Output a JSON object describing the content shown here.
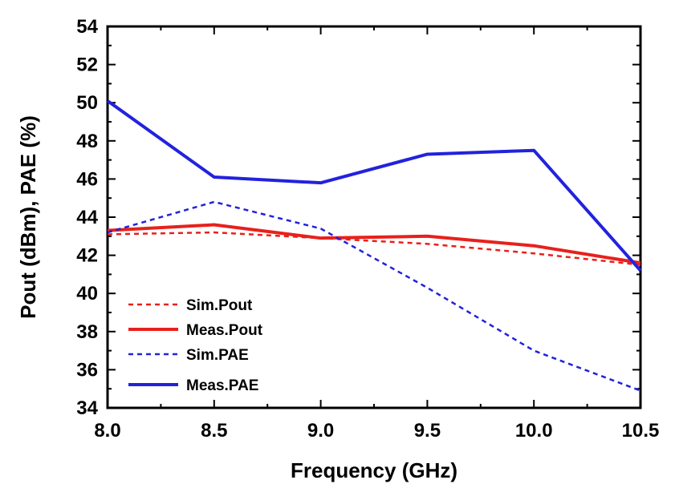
{
  "chart_data": {
    "type": "line",
    "xlabel": "Frequency (GHz)",
    "ylabel": "Pout (dBm), PAE (%)",
    "xlim": [
      8.0,
      10.5
    ],
    "ylim": [
      34,
      54
    ],
    "xticks": [
      "8.0",
      "8.5",
      "9.0",
      "9.5",
      "10.0",
      "10.5"
    ],
    "yticks": [
      "34",
      "36",
      "38",
      "40",
      "42",
      "44",
      "46",
      "48",
      "50",
      "52",
      "54"
    ],
    "grid": false,
    "legend_position": "bottom-left",
    "x": [
      8.0,
      8.5,
      9.0,
      9.5,
      10.0,
      10.5
    ],
    "series": [
      {
        "name": "Sim.Pout",
        "values": [
          43.1,
          43.2,
          42.9,
          42.6,
          42.1,
          41.5
        ],
        "color": "#e8201c",
        "dash": true
      },
      {
        "name": "Meas.Pout",
        "values": [
          43.3,
          43.6,
          42.9,
          43.0,
          42.5,
          41.6
        ],
        "color": "#e8201c",
        "dash": false
      },
      {
        "name": "Sim.PAE",
        "values": [
          43.2,
          44.8,
          43.4,
          40.3,
          37.0,
          34.9
        ],
        "color": "#2222dd",
        "dash": true
      },
      {
        "name": "Meas.PAE",
        "values": [
          50.1,
          46.1,
          45.8,
          47.3,
          47.5,
          41.2
        ],
        "color": "#2222dd",
        "dash": false
      }
    ]
  }
}
